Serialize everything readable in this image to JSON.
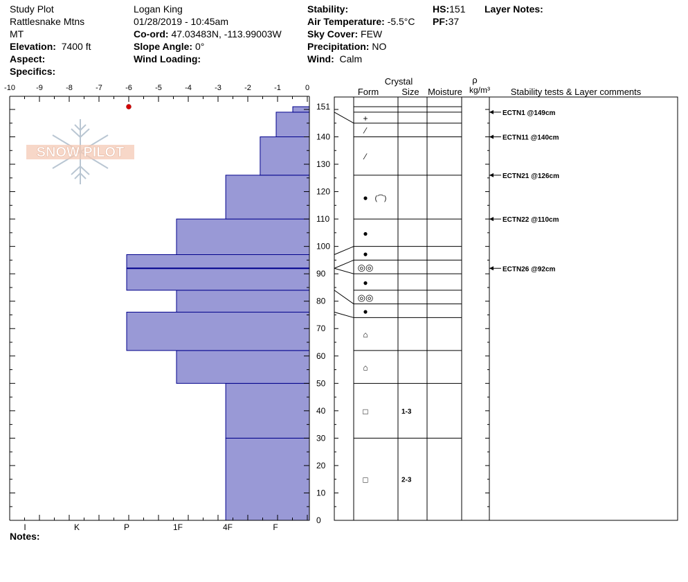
{
  "header": {
    "col1": {
      "line1": "Study Plot",
      "line2": "Rattlesnake Mtns",
      "line3": "MT",
      "elevation_label": "Elevation:",
      "elevation_value": "7400 ft",
      "aspect_label": "Aspect:",
      "specifics_label": "Specifics:"
    },
    "col2": {
      "observer": "Logan King",
      "datetime": "01/28/2019 - 10:45am",
      "coord_label": "Co-ord:",
      "coord_value": "47.03483N, -113.99003W",
      "slope_label": "Slope Angle:",
      "slope_value": "0°",
      "wind_loading_label": "Wind Loading:"
    },
    "col3": {
      "stability_label": "Stability:",
      "air_temp_label": "Air Temperature:",
      "air_temp_value": "-5.5°C",
      "sky_label": "Sky Cover:",
      "sky_value": "FEW",
      "precip_label": "Precipitation:",
      "precip_value": "NO",
      "wind_label": "Wind:",
      "wind_value": "Calm"
    },
    "col4": {
      "hs_label": "HS:",
      "hs_value": "151",
      "pf_label": "PF:",
      "pf_value": "37"
    },
    "layer_notes_label": "Layer Notes:"
  },
  "notes_label": "Notes:",
  "logo_text": "SNOW PILOT",
  "colors": {
    "hardness_fill": "#9999d6",
    "hardness_stroke": "#00008b",
    "temp_point": "#d40000",
    "grid": "#000000"
  },
  "table_headers": {
    "crystal": "Crystal",
    "form": "Form",
    "size": "Size",
    "moisture": "Moisture",
    "rho": "ρ",
    "density_unit": "kg/m³",
    "stability": "Stability tests & Layer comments"
  },
  "chart_data": {
    "type": "snow-profile",
    "temperature_axis": {
      "ticks": [
        -10,
        -9,
        -8,
        -7,
        -6,
        -5,
        -4,
        -3,
        -2,
        -1,
        0
      ],
      "range": [
        -10,
        0
      ]
    },
    "hardness_axis": {
      "labels": [
        "I",
        "K",
        "P",
        "1F",
        "4F",
        "F"
      ]
    },
    "height_axis": {
      "ticks": [
        0,
        10,
        20,
        30,
        40,
        50,
        60,
        70,
        80,
        90,
        100,
        110,
        120,
        130,
        140,
        151
      ],
      "range": [
        0,
        151
      ]
    },
    "temperature_points": [
      {
        "height": 151,
        "temp": -6
      }
    ],
    "hardness_layers": [
      {
        "bottom": 0,
        "top": 30,
        "hardness": 2.77
      },
      {
        "bottom": 30,
        "top": 50,
        "hardness": 2.77
      },
      {
        "bottom": 50,
        "top": 62,
        "hardness": 4.4
      },
      {
        "bottom": 62,
        "top": 76,
        "hardness": 6.05
      },
      {
        "bottom": 76,
        "top": 84,
        "hardness": 4.4
      },
      {
        "bottom": 84,
        "top": 92,
        "hardness": 6.05
      },
      {
        "bottom": 92,
        "top": 97,
        "hardness": 6.05
      },
      {
        "bottom": 97,
        "top": 110,
        "hardness": 4.4
      },
      {
        "bottom": 110,
        "top": 126,
        "hardness": 2.77
      },
      {
        "bottom": 126,
        "top": 140,
        "hardness": 1.63
      },
      {
        "bottom": 140,
        "top": 149,
        "hardness": 1.1
      },
      {
        "bottom": 149,
        "top": 151,
        "hardness": 0.55
      }
    ],
    "layer_boundaries": [
      151,
      149,
      145,
      140,
      126,
      110,
      100,
      95,
      90,
      84,
      79,
      74,
      62,
      50,
      30,
      0
    ],
    "crystal_forms": [
      {
        "height": 147,
        "symbol": "+"
      },
      {
        "height": 142.5,
        "symbol": "⁄"
      },
      {
        "height": 133,
        "symbol": "⁄"
      },
      {
        "height": 118,
        "symbol": "●",
        "extra": "(⌒)"
      },
      {
        "height": 105,
        "symbol": "●"
      },
      {
        "height": 97.5,
        "symbol": "●"
      },
      {
        "height": 92.5,
        "symbol": "◎◎"
      },
      {
        "height": 87,
        "symbol": "●"
      },
      {
        "height": 81.5,
        "symbol": "◎◎"
      },
      {
        "height": 76.5,
        "symbol": "●"
      },
      {
        "height": 68,
        "symbol": "⌂"
      },
      {
        "height": 56,
        "symbol": "⌂"
      },
      {
        "height": 40,
        "symbol": "□",
        "size": "1-3"
      },
      {
        "height": 15,
        "symbol": "□",
        "size": "2-3"
      }
    ],
    "stability_tests": [
      {
        "height": 149,
        "label": "ECTN1 @149cm"
      },
      {
        "height": 140,
        "label": "ECTN11 @140cm"
      },
      {
        "height": 126,
        "label": "ECTN21 @126cm"
      },
      {
        "height": 110,
        "label": "ECTN22 @110cm"
      },
      {
        "height": 92,
        "label": "ECTN26 @92cm"
      }
    ]
  }
}
